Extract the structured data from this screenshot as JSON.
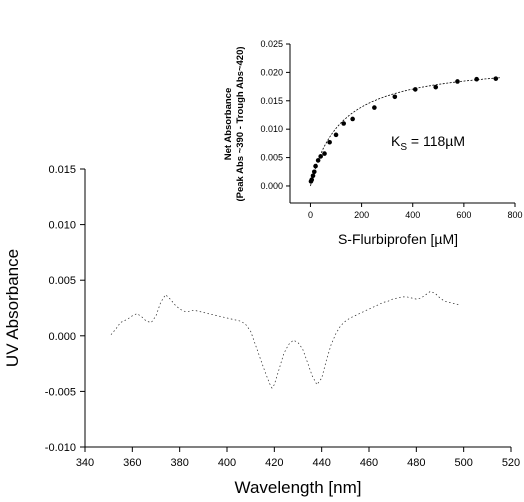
{
  "chart_data": [
    {
      "type": "line",
      "title": "",
      "xlabel": "Wavelength [nm]",
      "ylabel": "UV Absorbance",
      "xlim": [
        340,
        520
      ],
      "ylim": [
        -0.01,
        0.015
      ],
      "xticks": [
        "340",
        "360",
        "380",
        "400",
        "420",
        "440",
        "460",
        "480",
        "500",
        "520"
      ],
      "yticks": [
        "-0.010",
        "-0.005",
        "0.000",
        "0.005",
        "0.010",
        "0.015"
      ],
      "grid": false,
      "series": [
        {
          "x": [
            351,
            353,
            355,
            358,
            360,
            362,
            364,
            366,
            368,
            370,
            372,
            374,
            376,
            378,
            380,
            382,
            384,
            386,
            388,
            390,
            392,
            394,
            396,
            398,
            400,
            402,
            404,
            406,
            408,
            410,
            412,
            414,
            416,
            418,
            419,
            420,
            422,
            424,
            426,
            428,
            430,
            432,
            434,
            436,
            438,
            440,
            442,
            444,
            446,
            448,
            450,
            452,
            454,
            456,
            458,
            460,
            462,
            464,
            466,
            468,
            470,
            472,
            474,
            476,
            478,
            480,
            482,
            484,
            486,
            488,
            490,
            492,
            494,
            496,
            498
          ],
          "y": [
            0.0001,
            0.0006,
            0.0012,
            0.0015,
            0.0018,
            0.002,
            0.0017,
            0.0013,
            0.0012,
            0.0018,
            0.003,
            0.0037,
            0.0033,
            0.0028,
            0.0024,
            0.0022,
            0.0022,
            0.0023,
            0.0022,
            0.0021,
            0.002,
            0.0019,
            0.0018,
            0.0017,
            0.0016,
            0.0015,
            0.0014,
            0.0013,
            0.001,
            0.0004,
            -0.0008,
            -0.002,
            -0.0032,
            -0.0043,
            -0.0047,
            -0.0044,
            -0.003,
            -0.0016,
            -0.0008,
            -0.0004,
            -0.0006,
            -0.0012,
            -0.0024,
            -0.0036,
            -0.0044,
            -0.0038,
            -0.0022,
            -0.0008,
            0.0002,
            0.0009,
            0.0013,
            0.0016,
            0.0018,
            0.002,
            0.0022,
            0.0024,
            0.0026,
            0.0028,
            0.003,
            0.0031,
            0.0033,
            0.0034,
            0.0035,
            0.0035,
            0.0034,
            0.0033,
            0.0034,
            0.0037,
            0.004,
            0.0038,
            0.0034,
            0.0031,
            0.003,
            0.0029,
            0.0028
          ]
        }
      ]
    },
    {
      "type": "scatter",
      "title": "",
      "xlabel": "S-Flurbiprofen [µM]",
      "ylabel_lines": [
        "Net Absorbance",
        "(Peak Abs ~390 - Trough Abs~420)"
      ],
      "xlim": [
        -80,
        800
      ],
      "ylim": [
        -0.003,
        0.025
      ],
      "xticks": [
        "0",
        "200",
        "400",
        "600",
        "800"
      ],
      "yticks": [
        "0.000",
        "0.005",
        "0.010",
        "0.015",
        "0.020",
        "0.025"
      ],
      "annotation": "K",
      "annotation_sub": "S",
      "annotation_rest": " = 118µM",
      "fit": {
        "model": "hyperbolic",
        "Bmax": 0.0221,
        "Kd": 118
      },
      "series": [
        {
          "x": [
            2,
            5,
            10,
            15,
            20,
            30,
            40,
            55,
            75,
            100,
            130,
            165,
            250,
            330,
            410,
            490,
            575,
            650,
            725
          ],
          "y": [
            0.0008,
            0.0011,
            0.0018,
            0.0025,
            0.0035,
            0.0045,
            0.0052,
            0.0057,
            0.0077,
            0.009,
            0.011,
            0.0118,
            0.0138,
            0.0157,
            0.017,
            0.0174,
            0.0184,
            0.0188,
            0.0189
          ]
        }
      ]
    }
  ]
}
